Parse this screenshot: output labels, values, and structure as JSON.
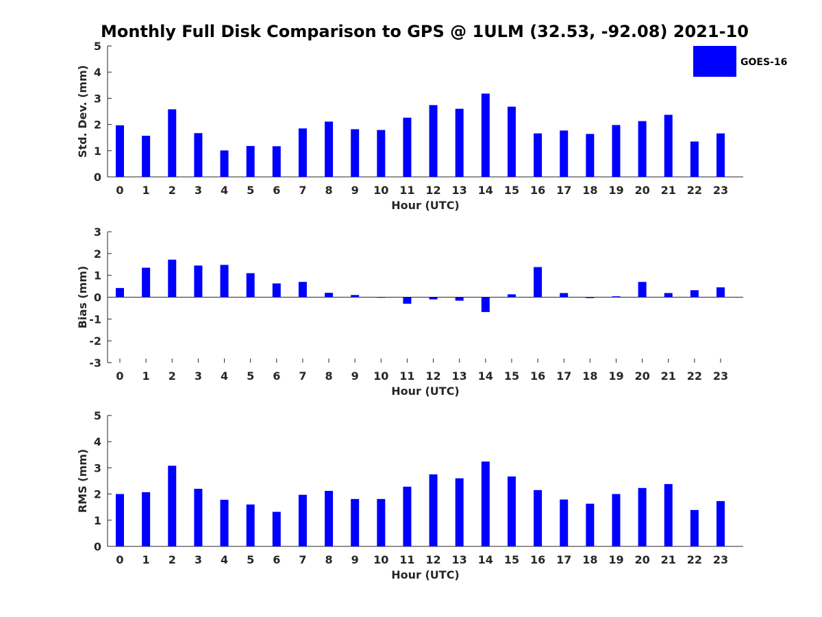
{
  "chart_data": {
    "type": "bar",
    "title": "Monthly Full Disk Comparison to GPS @ 1ULM (32.53, -92.08) 2021-10",
    "legend": {
      "label": "GOES-16",
      "placement": "top-right",
      "color": "#0000ff"
    },
    "categories": [
      "0",
      "1",
      "2",
      "3",
      "4",
      "5",
      "6",
      "7",
      "8",
      "9",
      "10",
      "11",
      "12",
      "13",
      "14",
      "15",
      "16",
      "17",
      "18",
      "19",
      "20",
      "21",
      "22",
      "23"
    ],
    "panels": [
      {
        "id": "std",
        "ylabel": "Std. Dev. (mm)",
        "xlabel": "Hour (UTC)",
        "ylim": [
          0,
          5
        ],
        "yticks": [
          0,
          1,
          2,
          3,
          4,
          5
        ],
        "yticklabels": [
          "0",
          "1",
          "2",
          "3",
          "4",
          "5"
        ],
        "series": [
          {
            "name": "GOES-16",
            "values": [
              1.97,
              1.57,
              2.58,
              1.67,
              1.01,
              1.18,
              1.17,
              1.85,
              2.11,
              1.82,
              1.79,
              2.26,
              2.74,
              2.6,
              3.18,
              2.68,
              1.66,
              1.77,
              1.64,
              1.98,
              2.13,
              2.37,
              1.35,
              1.66
            ]
          }
        ]
      },
      {
        "id": "bias",
        "ylabel": "Bias (mm)",
        "xlabel": "Hour (UTC)",
        "ylim": [
          -3,
          3
        ],
        "yticks": [
          -3,
          -2,
          -1,
          0,
          1,
          2,
          3
        ],
        "yticklabels": [
          "-3",
          "-2",
          "-1",
          "0",
          "1",
          "2",
          "3"
        ],
        "zero_line": true,
        "series": [
          {
            "name": "GOES-16",
            "values": [
              0.42,
              1.35,
              1.72,
              1.45,
              1.48,
              1.1,
              0.63,
              0.7,
              0.2,
              0.1,
              0.0,
              -0.3,
              -0.1,
              -0.16,
              -0.68,
              0.13,
              1.38,
              0.19,
              -0.04,
              0.04,
              0.7,
              0.19,
              0.32,
              0.45
            ]
          }
        ]
      },
      {
        "id": "rms",
        "ylabel": "RMS (mm)",
        "xlabel": "Hour (UTC)",
        "ylim": [
          0,
          5
        ],
        "yticks": [
          0,
          1,
          2,
          3,
          4,
          5
        ],
        "yticklabels": [
          "0",
          "1",
          "2",
          "3",
          "4",
          "5"
        ],
        "series": [
          {
            "name": "GOES-16",
            "values": [
              2.0,
              2.07,
              3.08,
              2.2,
              1.78,
              1.6,
              1.32,
              1.97,
              2.12,
              1.81,
              1.81,
              2.28,
              2.75,
              2.6,
              3.24,
              2.67,
              2.15,
              1.79,
              1.63,
              2.0,
              2.23,
              2.38,
              1.39,
              1.73
            ]
          }
        ]
      }
    ]
  }
}
